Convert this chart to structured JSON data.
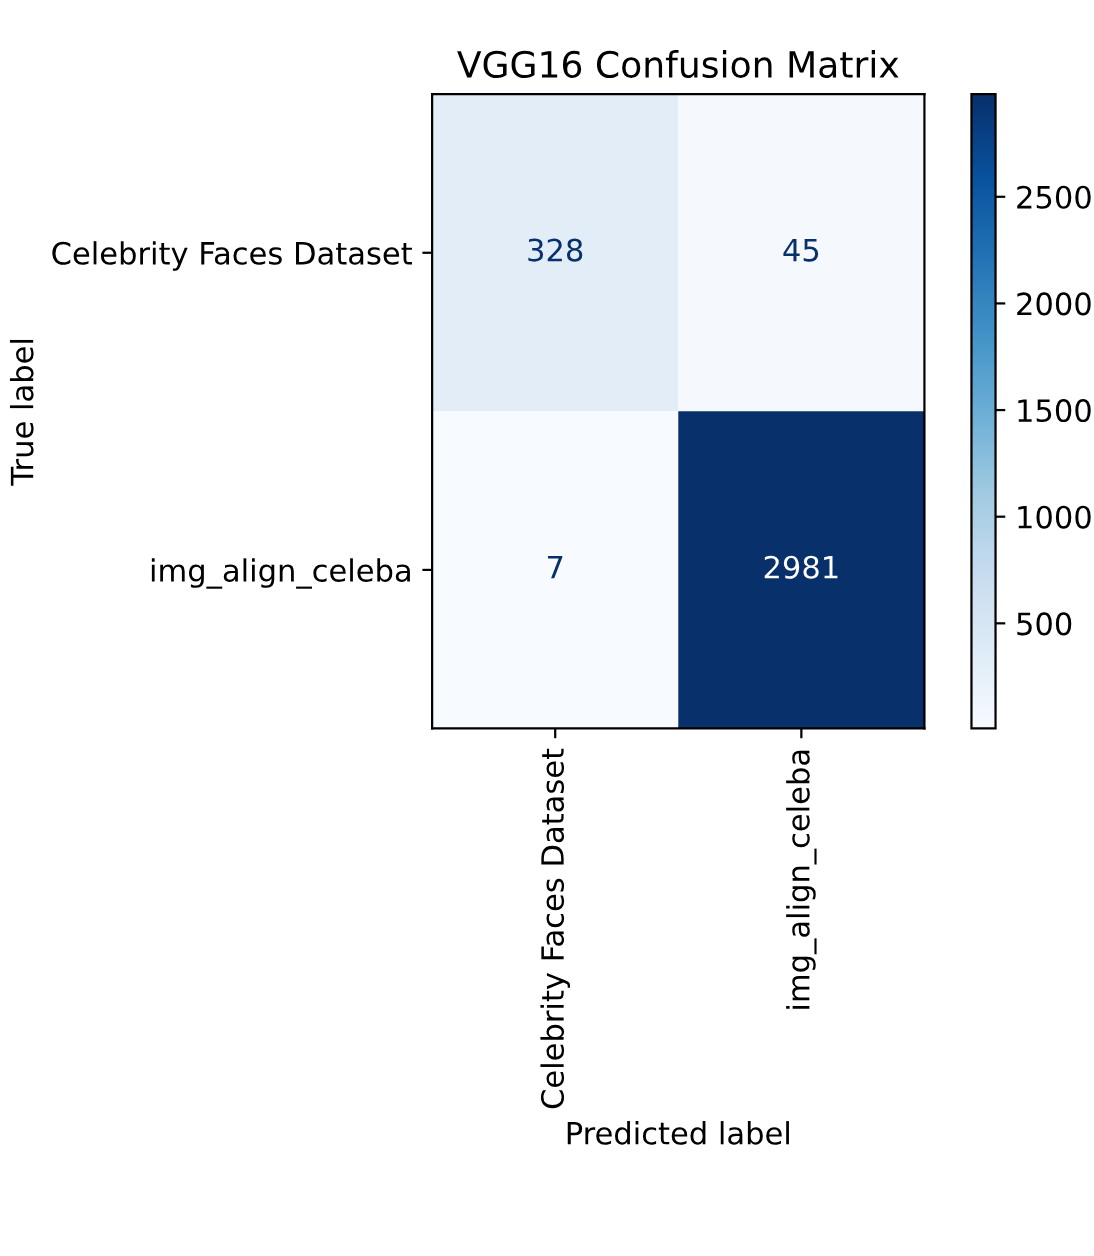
{
  "chart_data": {
    "type": "heatmap",
    "title": "VGG16 Confusion Matrix",
    "xlabel": "Predicted label",
    "ylabel": "True label",
    "categories": [
      "Celebrity Faces Dataset",
      "img_align_celeba"
    ],
    "y_categories": [
      "Celebrity Faces Dataset",
      "img_align_celeba"
    ],
    "cells": [
      [
        328,
        45
      ],
      [
        7,
        2981
      ]
    ],
    "data_labels": true,
    "clim": [
      7,
      2981
    ],
    "cticks": [
      500,
      1000,
      1500,
      2000,
      2500
    ]
  }
}
